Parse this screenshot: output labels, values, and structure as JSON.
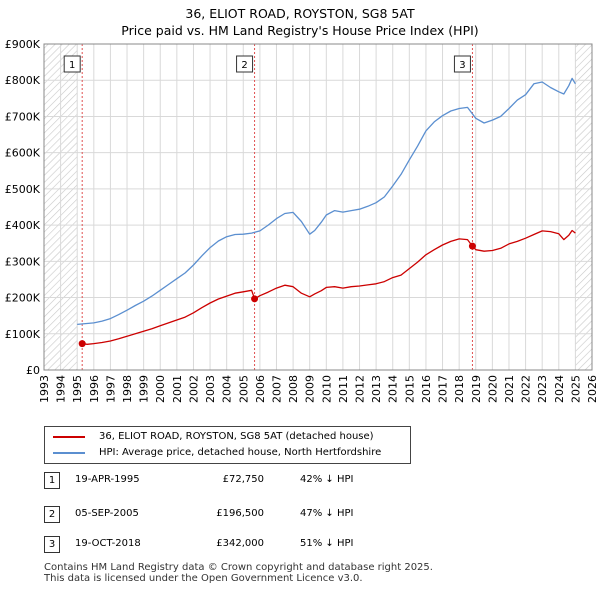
{
  "chart_data": {
    "type": "line",
    "title": "36, ELIOT ROAD, ROYSTON, SG8 5AT",
    "subtitle": "Price paid vs. HM Land Registry's House Price Index (HPI)",
    "xlabel": "",
    "ylabel": "",
    "xlim": [
      1993,
      2026
    ],
    "ylim": [
      0,
      900000
    ],
    "y_ticks": [
      {
        "value": 0,
        "label": "£0"
      },
      {
        "value": 100000,
        "label": "£100K"
      },
      {
        "value": 200000,
        "label": "£200K"
      },
      {
        "value": 300000,
        "label": "£300K"
      },
      {
        "value": 400000,
        "label": "£400K"
      },
      {
        "value": 500000,
        "label": "£500K"
      },
      {
        "value": 600000,
        "label": "£600K"
      },
      {
        "value": 700000,
        "label": "£700K"
      },
      {
        "value": 800000,
        "label": "£800K"
      },
      {
        "value": 900000,
        "label": "£900K"
      }
    ],
    "x_ticks": [
      "1993",
      "1994",
      "1995",
      "1996",
      "1997",
      "1998",
      "1999",
      "2000",
      "2001",
      "2002",
      "2003",
      "2004",
      "2005",
      "2006",
      "2007",
      "2008",
      "2009",
      "2010",
      "2011",
      "2012",
      "2013",
      "2014",
      "2015",
      "2016",
      "2017",
      "2018",
      "2019",
      "2020",
      "2021",
      "2022",
      "2023",
      "2024",
      "2025",
      "2026"
    ],
    "hatch_ranges": [
      [
        1993,
        1995.0
      ],
      [
        2025.0,
        2026
      ]
    ],
    "grid": true,
    "series": [
      {
        "name": "36, ELIOT ROAD, ROYSTON, SG8 5AT (detached house)",
        "color": "#cc0000",
        "x": [
          1995.3,
          1995.6,
          1996.0,
          1996.5,
          1997.0,
          1997.5,
          1998.0,
          1998.5,
          1999.0,
          1999.5,
          2000.0,
          2000.5,
          2001.0,
          2001.5,
          2002.0,
          2002.5,
          2003.0,
          2003.5,
          2004.0,
          2004.5,
          2005.0,
          2005.5,
          2005.68,
          2006.0,
          2006.5,
          2007.0,
          2007.5,
          2008.0,
          2008.5,
          2009.0,
          2009.3,
          2009.7,
          2010.0,
          2010.5,
          2011.0,
          2011.5,
          2012.0,
          2012.5,
          2013.0,
          2013.5,
          2014.0,
          2014.5,
          2015.0,
          2015.5,
          2016.0,
          2016.5,
          2017.0,
          2017.5,
          2018.0,
          2018.5,
          2018.8,
          2019.0,
          2019.5,
          2020.0,
          2020.5,
          2021.0,
          2021.5,
          2022.0,
          2022.5,
          2023.0,
          2023.5,
          2024.0,
          2024.3,
          2024.6,
          2024.8,
          2025.0
        ],
        "y": [
          72750,
          71000,
          73000,
          76000,
          80000,
          86000,
          93000,
          100000,
          107000,
          114000,
          122000,
          130000,
          138000,
          146000,
          158000,
          172000,
          185000,
          196000,
          204000,
          212000,
          216000,
          220000,
          196500,
          205000,
          215000,
          226000,
          234000,
          230000,
          212000,
          202000,
          210000,
          219000,
          228000,
          230000,
          226000,
          230000,
          232000,
          235000,
          238000,
          244000,
          255000,
          262000,
          280000,
          298000,
          318000,
          332000,
          345000,
          355000,
          362000,
          360000,
          342000,
          332000,
          328000,
          330000,
          336000,
          348000,
          355000,
          364000,
          374000,
          384000,
          382000,
          376000,
          360000,
          372000,
          385000,
          378000
        ]
      },
      {
        "name": "HPI: Average price, detached house, North Hertfordshire",
        "color": "#5b8fd0",
        "x": [
          1995.0,
          1995.5,
          1996.0,
          1996.5,
          1997.0,
          1997.5,
          1998.0,
          1998.5,
          1999.0,
          1999.5,
          2000.0,
          2000.5,
          2001.0,
          2001.5,
          2002.0,
          2002.5,
          2003.0,
          2003.5,
          2004.0,
          2004.5,
          2005.0,
          2005.5,
          2006.0,
          2006.5,
          2007.0,
          2007.5,
          2008.0,
          2008.5,
          2009.0,
          2009.3,
          2009.7,
          2010.0,
          2010.5,
          2011.0,
          2011.5,
          2012.0,
          2012.5,
          2013.0,
          2013.5,
          2014.0,
          2014.5,
          2015.0,
          2015.5,
          2016.0,
          2016.5,
          2017.0,
          2017.5,
          2018.0,
          2018.5,
          2019.0,
          2019.5,
          2020.0,
          2020.5,
          2021.0,
          2021.5,
          2022.0,
          2022.5,
          2023.0,
          2023.5,
          2024.0,
          2024.3,
          2024.6,
          2024.8,
          2025.0
        ],
        "y": [
          126000,
          128000,
          130000,
          135000,
          142000,
          153000,
          165000,
          178000,
          190000,
          204000,
          220000,
          236000,
          252000,
          268000,
          290000,
          315000,
          338000,
          356000,
          368000,
          374000,
          375000,
          378000,
          384000,
          400000,
          418000,
          432000,
          435000,
          410000,
          375000,
          385000,
          408000,
          428000,
          440000,
          436000,
          440000,
          444000,
          452000,
          462000,
          478000,
          508000,
          540000,
          580000,
          618000,
          660000,
          685000,
          702000,
          715000,
          722000,
          725000,
          695000,
          682000,
          690000,
          700000,
          722000,
          745000,
          760000,
          790000,
          795000,
          780000,
          768000,
          762000,
          785000,
          805000,
          790000
        ]
      }
    ],
    "markers": [
      {
        "label": "1",
        "x": 1995.3,
        "y": 72750
      },
      {
        "label": "2",
        "x": 2005.68,
        "y": 196500
      },
      {
        "label": "3",
        "x": 2018.8,
        "y": 342000
      }
    ]
  },
  "legend": {
    "property_label": "36, ELIOT ROAD, ROYSTON, SG8 5AT (detached house)",
    "hpi_label": "HPI: Average price, detached house, North Hertfordshire"
  },
  "transactions": [
    {
      "num": "1",
      "date": "19-APR-1995",
      "price": "£72,750",
      "pct": "42% ↓ HPI"
    },
    {
      "num": "2",
      "date": "05-SEP-2005",
      "price": "£196,500",
      "pct": "47% ↓ HPI"
    },
    {
      "num": "3",
      "date": "19-OCT-2018",
      "price": "£342,000",
      "pct": "51% ↓ HPI"
    }
  ],
  "footer": {
    "line1": "Contains HM Land Registry data © Crown copyright and database right 2025.",
    "line2": "This data is licensed under the Open Government Licence v3.0."
  }
}
